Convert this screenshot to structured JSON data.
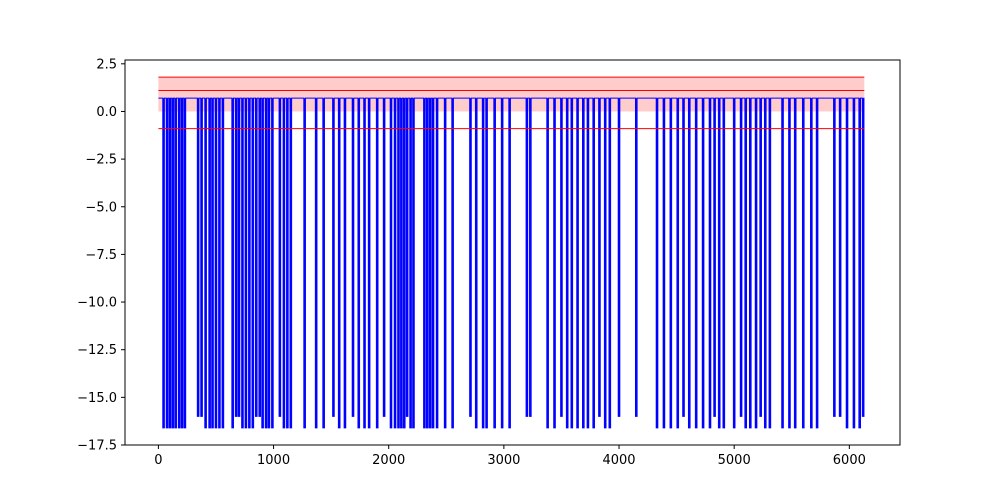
{
  "chart_data": {
    "type": "line",
    "title": "",
    "xlabel": "",
    "ylabel": "",
    "xlim": [
      -290,
      6440
    ],
    "ylim": [
      -17.5,
      2.7
    ],
    "x_ticks": [
      0,
      1000,
      2000,
      3000,
      4000,
      5000,
      6000
    ],
    "x_tick_labels": [
      "0",
      "1000",
      "2000",
      "3000",
      "4000",
      "5000",
      "6000"
    ],
    "y_ticks": [
      2.5,
      0.0,
      -2.5,
      -5.0,
      -7.5,
      -10.0,
      -12.5,
      -15.0,
      -17.5
    ],
    "y_tick_labels": [
      "2.5",
      "0.0",
      "−2.5",
      "−5.0",
      "−7.5",
      "−10.0",
      "−12.5",
      "−15.0",
      "−17.5"
    ],
    "grid": false,
    "legend": "none",
    "series": [
      {
        "color": "#0000ff",
        "baseline": 0.7,
        "x_range": [
          0,
          6130
        ],
        "spikes": [
          {
            "x": 45,
            "y": -16.6
          },
          {
            "x": 75,
            "y": -16.6
          },
          {
            "x": 100,
            "y": -16.6
          },
          {
            "x": 125,
            "y": -16.6
          },
          {
            "x": 150,
            "y": -16.6
          },
          {
            "x": 180,
            "y": -16.6
          },
          {
            "x": 205,
            "y": -16.6
          },
          {
            "x": 230,
            "y": -16.6
          },
          {
            "x": 345,
            "y": -16.0
          },
          {
            "x": 375,
            "y": -16.0
          },
          {
            "x": 410,
            "y": -16.6
          },
          {
            "x": 445,
            "y": -16.6
          },
          {
            "x": 470,
            "y": -16.6
          },
          {
            "x": 500,
            "y": -16.6
          },
          {
            "x": 530,
            "y": -16.6
          },
          {
            "x": 560,
            "y": -16.6
          },
          {
            "x": 645,
            "y": -16.6
          },
          {
            "x": 675,
            "y": -16.0
          },
          {
            "x": 700,
            "y": -16.0
          },
          {
            "x": 730,
            "y": -16.6
          },
          {
            "x": 760,
            "y": -16.6
          },
          {
            "x": 790,
            "y": -16.6
          },
          {
            "x": 820,
            "y": -16.6
          },
          {
            "x": 850,
            "y": -16.0
          },
          {
            "x": 880,
            "y": -16.0
          },
          {
            "x": 905,
            "y": -16.6
          },
          {
            "x": 935,
            "y": -16.6
          },
          {
            "x": 960,
            "y": -16.6
          },
          {
            "x": 990,
            "y": -16.6
          },
          {
            "x": 1055,
            "y": -16.0
          },
          {
            "x": 1090,
            "y": -16.6
          },
          {
            "x": 1120,
            "y": -16.6
          },
          {
            "x": 1150,
            "y": -16.6
          },
          {
            "x": 1270,
            "y": -16.6
          },
          {
            "x": 1370,
            "y": -16.6
          },
          {
            "x": 1435,
            "y": -16.6
          },
          {
            "x": 1520,
            "y": -16.0
          },
          {
            "x": 1570,
            "y": -16.6
          },
          {
            "x": 1620,
            "y": -16.6
          },
          {
            "x": 1690,
            "y": -16.0
          },
          {
            "x": 1740,
            "y": -16.6
          },
          {
            "x": 1790,
            "y": -16.6
          },
          {
            "x": 1830,
            "y": -16.6
          },
          {
            "x": 1900,
            "y": -16.6
          },
          {
            "x": 1960,
            "y": -16.0
          },
          {
            "x": 2020,
            "y": -16.6
          },
          {
            "x": 2055,
            "y": -16.6
          },
          {
            "x": 2085,
            "y": -16.6
          },
          {
            "x": 2110,
            "y": -16.6
          },
          {
            "x": 2135,
            "y": -16.6
          },
          {
            "x": 2160,
            "y": -16.0
          },
          {
            "x": 2190,
            "y": -16.6
          },
          {
            "x": 2215,
            "y": -16.6
          },
          {
            "x": 2310,
            "y": -16.6
          },
          {
            "x": 2335,
            "y": -16.6
          },
          {
            "x": 2360,
            "y": -16.6
          },
          {
            "x": 2385,
            "y": -16.6
          },
          {
            "x": 2420,
            "y": -16.6
          },
          {
            "x": 2490,
            "y": -16.6
          },
          {
            "x": 2555,
            "y": -16.6
          },
          {
            "x": 2710,
            "y": -16.0
          },
          {
            "x": 2760,
            "y": -16.6
          },
          {
            "x": 2820,
            "y": -16.6
          },
          {
            "x": 2850,
            "y": -16.6
          },
          {
            "x": 2920,
            "y": -16.6
          },
          {
            "x": 2985,
            "y": -16.6
          },
          {
            "x": 3050,
            "y": -16.6
          },
          {
            "x": 3200,
            "y": -16.0
          },
          {
            "x": 3230,
            "y": -16.0
          },
          {
            "x": 3380,
            "y": -16.6
          },
          {
            "x": 3440,
            "y": -16.6
          },
          {
            "x": 3500,
            "y": -16.0
          },
          {
            "x": 3550,
            "y": -16.6
          },
          {
            "x": 3590,
            "y": -16.6
          },
          {
            "x": 3640,
            "y": -16.6
          },
          {
            "x": 3690,
            "y": -16.6
          },
          {
            "x": 3730,
            "y": -16.6
          },
          {
            "x": 3780,
            "y": -16.6
          },
          {
            "x": 3830,
            "y": -16.0
          },
          {
            "x": 3880,
            "y": -16.6
          },
          {
            "x": 3920,
            "y": -16.6
          },
          {
            "x": 4000,
            "y": -16.0
          },
          {
            "x": 4150,
            "y": -16.0
          },
          {
            "x": 4330,
            "y": -16.6
          },
          {
            "x": 4390,
            "y": -16.6
          },
          {
            "x": 4450,
            "y": -16.6
          },
          {
            "x": 4510,
            "y": -16.6
          },
          {
            "x": 4560,
            "y": -16.0
          },
          {
            "x": 4610,
            "y": -16.6
          },
          {
            "x": 4670,
            "y": -16.6
          },
          {
            "x": 4730,
            "y": -16.6
          },
          {
            "x": 4790,
            "y": -16.6
          },
          {
            "x": 4830,
            "y": -16.0
          },
          {
            "x": 4870,
            "y": -16.6
          },
          {
            "x": 4910,
            "y": -16.6
          },
          {
            "x": 5000,
            "y": -16.6
          },
          {
            "x": 5060,
            "y": -16.0
          },
          {
            "x": 5100,
            "y": -16.6
          },
          {
            "x": 5140,
            "y": -16.6
          },
          {
            "x": 5190,
            "y": -16.6
          },
          {
            "x": 5230,
            "y": -16.0
          },
          {
            "x": 5270,
            "y": -16.6
          },
          {
            "x": 5310,
            "y": -16.6
          },
          {
            "x": 5420,
            "y": -16.6
          },
          {
            "x": 5480,
            "y": -16.6
          },
          {
            "x": 5530,
            "y": -16.6
          },
          {
            "x": 5600,
            "y": -16.6
          },
          {
            "x": 5670,
            "y": -16.6
          },
          {
            "x": 5720,
            "y": -16.6
          },
          {
            "x": 5870,
            "y": -16.0
          },
          {
            "x": 5920,
            "y": -16.0
          },
          {
            "x": 5980,
            "y": -16.6
          },
          {
            "x": 6040,
            "y": -16.6
          },
          {
            "x": 6090,
            "y": -16.6
          },
          {
            "x": 6120,
            "y": -16.0
          }
        ]
      }
    ],
    "reference_lines": [
      {
        "y": 1.8,
        "color": "#ff0000",
        "x_range": [
          0,
          6130
        ]
      },
      {
        "y": 1.1,
        "color": "#ff0000",
        "x_range": [
          0,
          6130
        ]
      },
      {
        "y": -0.9,
        "color": "#ff0000",
        "x_range": [
          0,
          6130
        ]
      }
    ],
    "bands": [
      {
        "y_range": [
          0.0,
          1.8
        ],
        "color": "#ffcccc",
        "x_range": [
          0,
          6130
        ]
      }
    ]
  }
}
